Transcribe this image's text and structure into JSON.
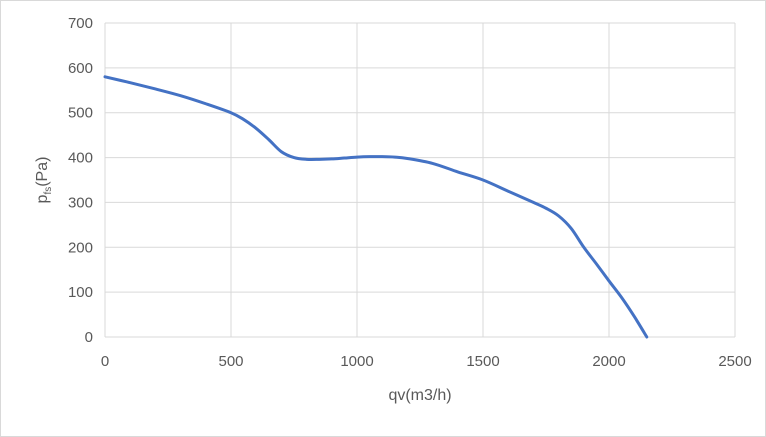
{
  "chart_data": {
    "type": "line",
    "title": "",
    "xlabel": "qv(m3/h)",
    "ylabel": {
      "base": "p",
      "subscript": "fs",
      "suffix": "(Pa)"
    },
    "xlim": [
      0,
      2500
    ],
    "ylim": [
      0,
      700
    ],
    "x_ticks": [
      0,
      500,
      1000,
      1500,
      2000,
      2500
    ],
    "y_ticks": [
      0,
      100,
      200,
      300,
      400,
      500,
      600,
      700
    ],
    "grid": true,
    "legend": "none",
    "series": [
      {
        "color": "#4472c4",
        "x": [
          0,
          100,
          200,
          300,
          400,
          500,
          550,
          600,
          650,
          700,
          750,
          800,
          850,
          900,
          950,
          1000,
          1050,
          1100,
          1150,
          1200,
          1300,
          1400,
          1500,
          1600,
          1700,
          1750,
          1800,
          1850,
          1900,
          1950,
          2000,
          2050,
          2100,
          2150
        ],
        "y": [
          580,
          567,
          553,
          538,
          520,
          500,
          485,
          465,
          440,
          413,
          400,
          396,
          396,
          397,
          399,
          401,
          402,
          402,
          401,
          398,
          387,
          368,
          350,
          325,
          300,
          287,
          270,
          242,
          200,
          163,
          125,
          88,
          46,
          0
        ]
      }
    ]
  },
  "colors": {
    "line": "#4472c4",
    "grid": "#d9d9d9",
    "text": "#595959"
  }
}
